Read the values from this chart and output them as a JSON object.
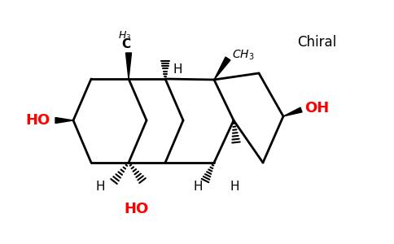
{
  "background_color": "#ffffff",
  "bond_color": "#000000",
  "ho_color": "#ff0000",
  "figsize": [
    4.84,
    3.0
  ],
  "dpi": 100,
  "chiral_text": "Chiral",
  "ho_label": "HO",
  "oh_label": "OH"
}
